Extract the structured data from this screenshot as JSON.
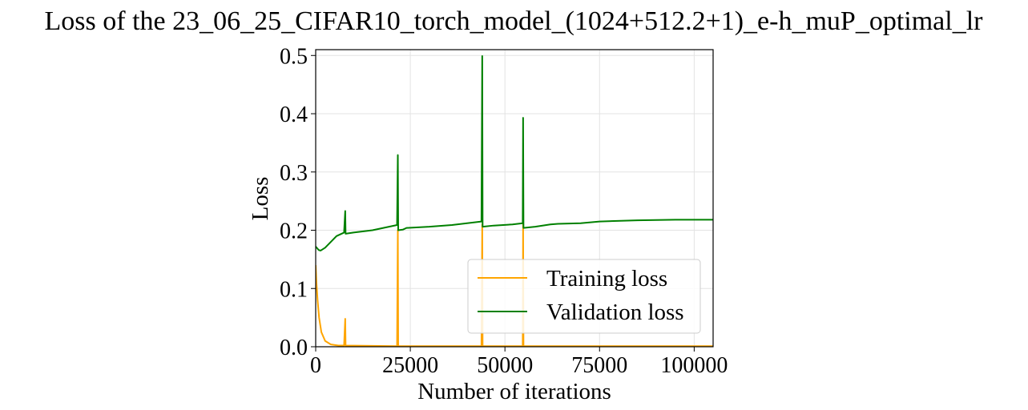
{
  "chart_data": {
    "type": "line",
    "title": "Loss of the 23_06_25_CIFAR10_torch_model_(1024+512.2+1)_e-h_muP_optimal_lr",
    "xlabel": "Number of iterations",
    "ylabel": "Loss",
    "xlim": [
      0,
      105000
    ],
    "ylim": [
      0,
      0.51
    ],
    "xticks": [
      0,
      25000,
      50000,
      75000,
      100000
    ],
    "xtick_labels": [
      "0",
      "25000",
      "50000",
      "75000",
      "100000"
    ],
    "yticks": [
      0.0,
      0.1,
      0.2,
      0.3,
      0.4,
      0.5
    ],
    "ytick_labels": [
      "0.0",
      "0.1",
      "0.2",
      "0.3",
      "0.4",
      "0.5"
    ],
    "grid": true,
    "legend_position": "lower-right",
    "series": [
      {
        "name": "Training loss",
        "color": "#ffa500",
        "points": [
          [
            0,
            0.14
          ],
          [
            200,
            0.11
          ],
          [
            500,
            0.08
          ],
          [
            900,
            0.05
          ],
          [
            1500,
            0.025
          ],
          [
            2500,
            0.01
          ],
          [
            4000,
            0.004
          ],
          [
            6000,
            0.002
          ],
          [
            7500,
            0.002
          ],
          [
            7800,
            0.048
          ],
          [
            7900,
            0.002
          ],
          [
            21500,
            0.001
          ],
          [
            21700,
            0.2
          ],
          [
            21800,
            0.001
          ],
          [
            43800,
            0.001
          ],
          [
            44000,
            0.21
          ],
          [
            44100,
            0.001
          ],
          [
            54700,
            0.001
          ],
          [
            54800,
            0.21
          ],
          [
            54900,
            0.001
          ],
          [
            105000,
            0.001
          ]
        ]
      },
      {
        "name": "Validation loss",
        "color": "#008000",
        "points": [
          [
            0,
            0.172
          ],
          [
            800,
            0.166
          ],
          [
            1300,
            0.165
          ],
          [
            2500,
            0.17
          ],
          [
            4000,
            0.18
          ],
          [
            5500,
            0.19
          ],
          [
            7500,
            0.196
          ],
          [
            7800,
            0.233
          ],
          [
            7900,
            0.194
          ],
          [
            10000,
            0.196
          ],
          [
            15000,
            0.2
          ],
          [
            21500,
            0.209
          ],
          [
            21700,
            0.329
          ],
          [
            21800,
            0.2
          ],
          [
            23000,
            0.201
          ],
          [
            24000,
            0.204
          ],
          [
            30000,
            0.206
          ],
          [
            36000,
            0.209
          ],
          [
            40000,
            0.212
          ],
          [
            43800,
            0.215
          ],
          [
            44000,
            0.499
          ],
          [
            44100,
            0.206
          ],
          [
            47000,
            0.208
          ],
          [
            52000,
            0.21
          ],
          [
            54700,
            0.212
          ],
          [
            54800,
            0.393
          ],
          [
            54900,
            0.204
          ],
          [
            58000,
            0.206
          ],
          [
            62000,
            0.21
          ],
          [
            64000,
            0.211
          ],
          [
            70000,
            0.212
          ],
          [
            75000,
            0.215
          ],
          [
            85000,
            0.217
          ],
          [
            95000,
            0.218
          ],
          [
            105000,
            0.218
          ]
        ]
      }
    ]
  }
}
